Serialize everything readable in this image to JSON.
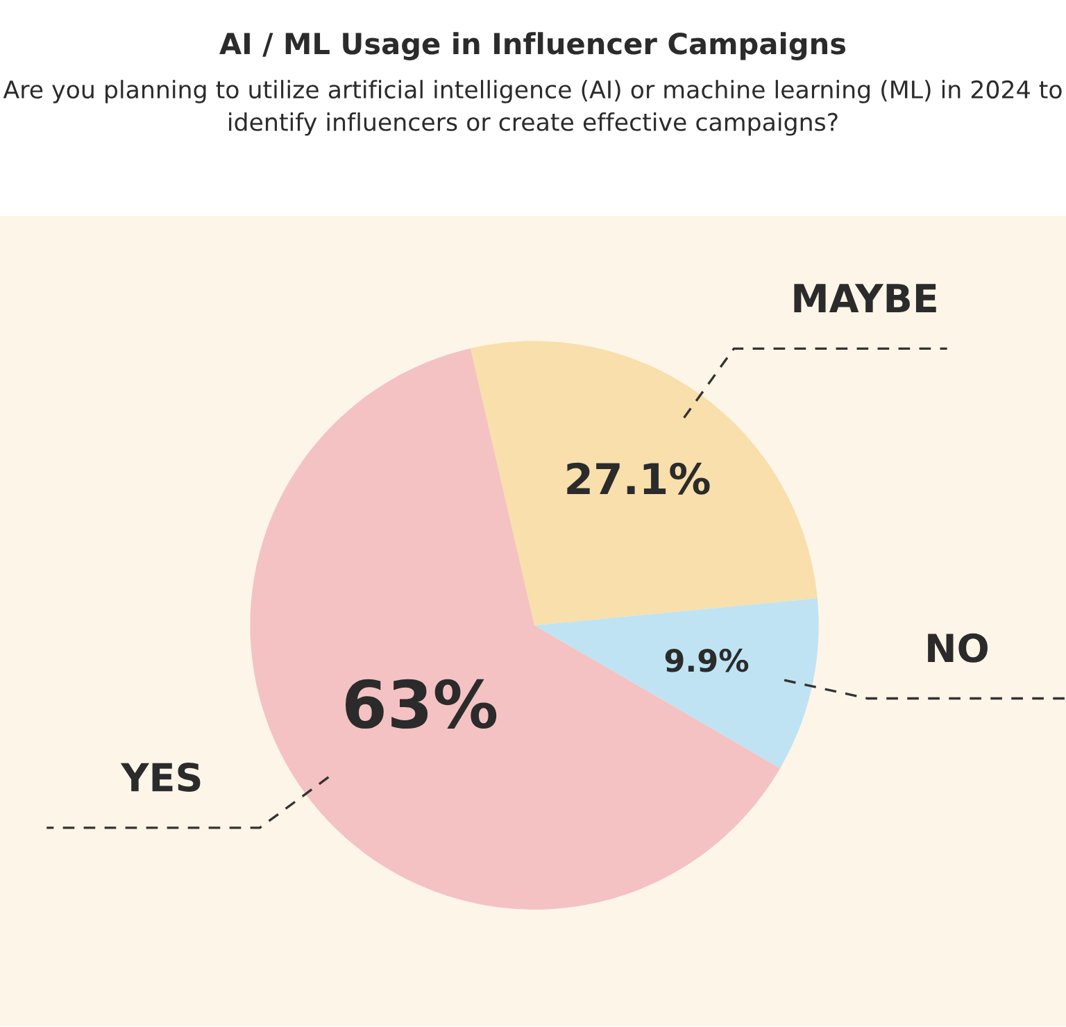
{
  "chart_data": {
    "type": "pie",
    "title": "AI / ML Usage in Influencer Campaigns",
    "subtitle": "Are you planning to utilize artificial intelligence (AI) or machine learning (ML) in 2024 to identify influencers or create effective campaigns?",
    "categories": [
      "MAYBE",
      "NO",
      "YES"
    ],
    "values": [
      27.1,
      9.9,
      63
    ],
    "value_labels": [
      "27.1%",
      "9.9%",
      "63%"
    ],
    "colors": [
      "#f8dfab",
      "#bfe3f3",
      "#f4c2c2"
    ],
    "legend": false
  }
}
